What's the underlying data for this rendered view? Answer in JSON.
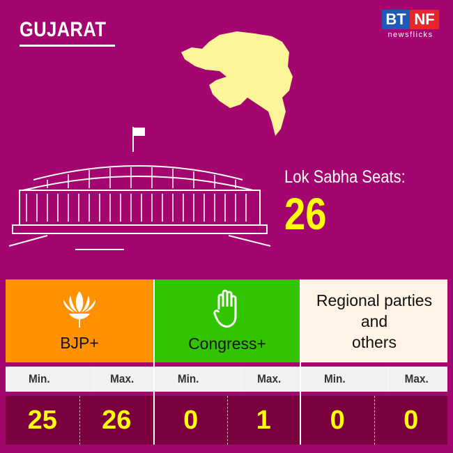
{
  "state": "GUJARAT",
  "logo": {
    "left": "BT",
    "right": "NF",
    "tagline": "newsflicks"
  },
  "seats": {
    "label": "Lok Sabha Seats:",
    "value": "26"
  },
  "colors": {
    "background": "#a3076f",
    "bjp": "#ff9000",
    "congress": "#33c400",
    "others": "#fff3e6",
    "values_bg": "#7a003e",
    "value_text": "#ffff00",
    "map": "#fdf59a"
  },
  "parties": [
    {
      "name": "BJP+",
      "icon": "lotus-icon",
      "min_label": "Min.",
      "max_label": "Max.",
      "min": "25",
      "max": "26"
    },
    {
      "name": "Congress+",
      "icon": "hand-icon",
      "min_label": "Min.",
      "max_label": "Max.",
      "min": "0",
      "max": "1"
    },
    {
      "name_lines": [
        "Regional parties",
        "and",
        "others"
      ],
      "min_label": "Min.",
      "max_label": "Max.",
      "min": "0",
      "max": "0"
    }
  ]
}
